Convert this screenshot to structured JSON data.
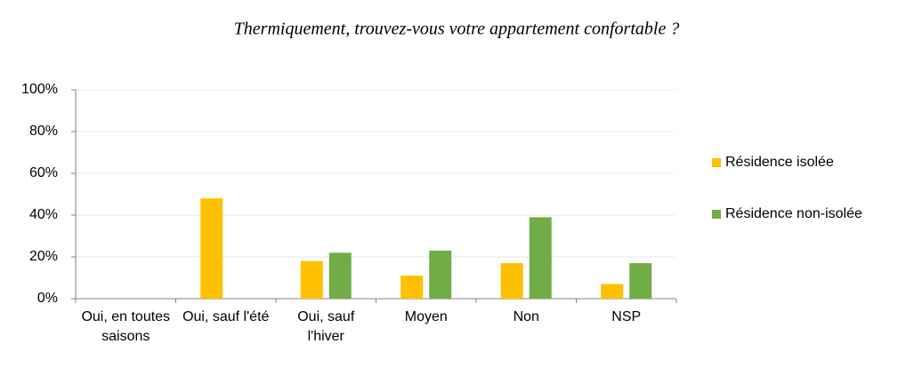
{
  "chart_data": {
    "type": "bar",
    "title": "Thermiquement, trouvez-vous votre appartement confortable ?",
    "categories": [
      "Oui, en toutes saisons",
      "Oui, sauf l'été",
      "Oui, sauf l'hiver",
      "Moyen",
      "Non",
      "NSP"
    ],
    "series": [
      {
        "name": "Résidence isolée",
        "color": "#ffc000",
        "values": [
          0,
          48,
          18,
          11,
          17,
          7
        ]
      },
      {
        "name": "Résidence non-isolée",
        "color": "#70ad47",
        "values": [
          0,
          0,
          22,
          23,
          39,
          17
        ]
      }
    ],
    "ylim": [
      0,
      100
    ],
    "yticks": [
      {
        "value": 0,
        "label": "0%"
      },
      {
        "value": 20,
        "label": "20%"
      },
      {
        "value": 40,
        "label": "40%"
      },
      {
        "value": 60,
        "label": "60%"
      },
      {
        "value": 80,
        "label": "80%"
      },
      {
        "value": 100,
        "label": "100%"
      }
    ],
    "grid": true,
    "legend": "right"
  }
}
